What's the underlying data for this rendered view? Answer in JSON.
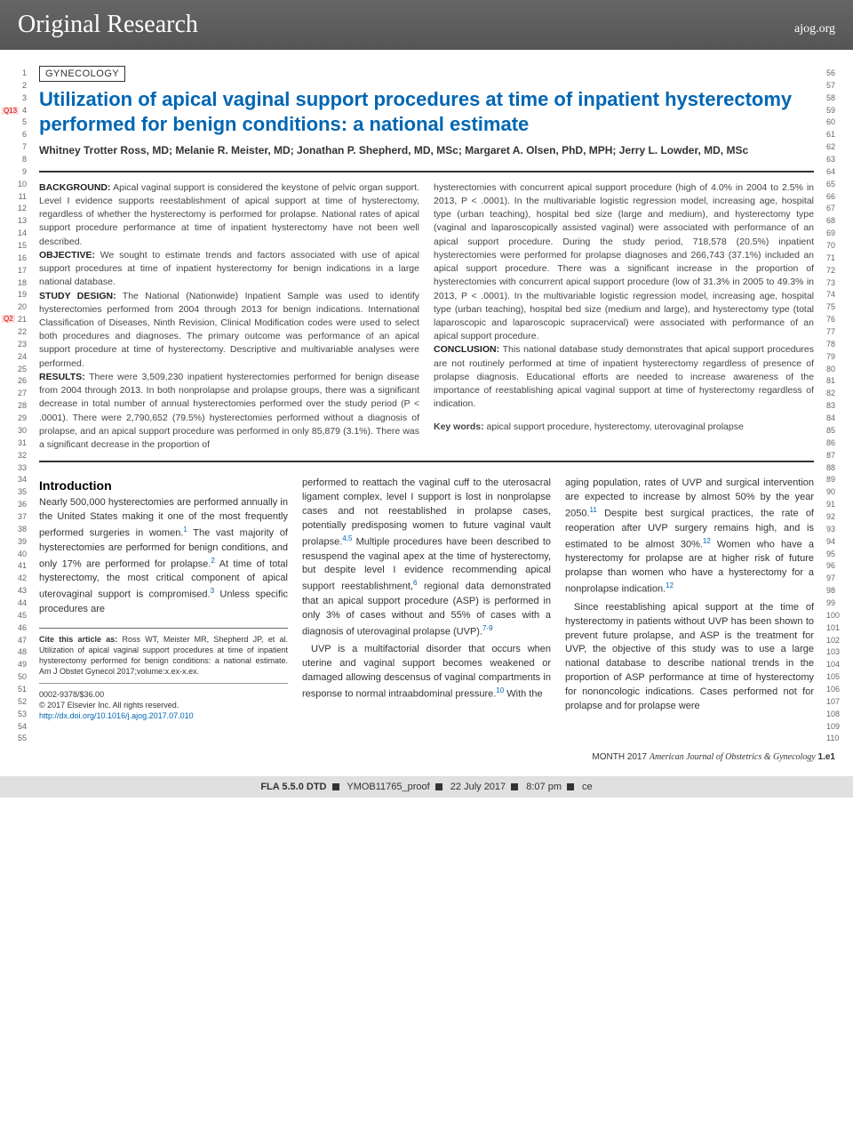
{
  "header": {
    "title": "Original Research",
    "url": "ajog.org"
  },
  "section_label": "GYNECOLOGY",
  "title": "Utilization of apical vaginal support procedures at time of inpatient hysterectomy performed for benign conditions: a national estimate",
  "authors": "Whitney Trotter Ross, MD; Melanie R. Meister, MD; Jonathan P. Shepherd, MD, MSc; Margaret A. Olsen, PhD, MPH; Jerry L. Lowder, MD, MSc",
  "q_markers": {
    "q13": "Q13",
    "q2": "Q2"
  },
  "abstract": {
    "left": {
      "background_label": "BACKGROUND:",
      "background": " Apical vaginal support is considered the keystone of pelvic organ support. Level I evidence supports reestablishment of apical support at time of hysterectomy, regardless of whether the hysterectomy is performed for prolapse. National rates of apical support procedure performance at time of inpatient hysterectomy have not been well described.",
      "objective_label": "OBJECTIVE:",
      "objective": " We sought to estimate trends and factors associated with use of apical support procedures at time of inpatient hysterectomy for benign indications in a large national database.",
      "study_label": "STUDY DESIGN:",
      "study": " The National (Nationwide) Inpatient Sample was used to identify hysterectomies performed from 2004 through 2013 for benign indications. International Classification of Diseases, Ninth Revision, Clinical Modification codes were used to select both procedures and diagnoses. The primary outcome was performance of an apical support procedure at time of hysterectomy. Descriptive and multivariable analyses were performed.",
      "results_label": "RESULTS:",
      "results": " There were 3,509,230 inpatient hysterectomies performed for benign disease from 2004 through 2013. In both nonprolapse and prolapse groups, there was a significant decrease in total number of annual hysterectomies performed over the study period (P < .0001). There were 2,790,652 (79.5%) hysterectomies performed without a diagnosis of prolapse, and an apical support procedure was performed in only 85,879 (3.1%). There was a significant decrease in the proportion of"
    },
    "right": {
      "cont1": "hysterectomies with concurrent apical support procedure (high of 4.0% in 2004 to 2.5% in 2013, P < .0001). In the multivariable logistic regression model, increasing age, hospital type (urban teaching), hospital bed size (large and medium), and hysterectomy type (vaginal and laparoscopically assisted vaginal) were associated with performance of an apical support procedure. During the study period, 718,578 (20.5%) inpatient hysterectomies were performed for prolapse diagnoses and 266,743 (37.1%) included an apical support procedure. There was a significant increase in the proportion of hysterectomies with concurrent apical support procedure (low of 31.3% in 2005 to 49.3% in 2013, P < .0001). In the multivariable logistic regression model, increasing age, hospital type (urban teaching), hospital bed size (medium and large), and hysterectomy type (total laparoscopic and laparoscopic supracervical) were associated with performance of an apical support procedure.",
      "conclusion_label": "CONCLUSION:",
      "conclusion": " This national database study demonstrates that apical support procedures are not routinely performed at time of inpatient hysterectomy regardless of presence of prolapse diagnosis. Educational efforts are needed to increase awareness of the importance of reestablishing apical vaginal support at time of hysterectomy regardless of indication.",
      "keywords_label": "Key words:",
      "keywords": " apical support procedure, hysterectomy, uterovaginal prolapse"
    }
  },
  "body": {
    "intro_heading": "Introduction",
    "col1_p1": "Nearly 500,000 hysterectomies are performed annually in the United States making it one of the most frequently performed surgeries in women.",
    "col1_p1_sup": "1",
    "col1_p1b": " The vast majority of hysterectomies are performed for benign conditions, and only 17% are performed for prolapse.",
    "col1_p1b_sup": "2",
    "col1_p1c": " At time of total hysterectomy, the most critical component of apical uterovaginal support is compromised.",
    "col1_p1c_sup": "3",
    "col1_p1d": " Unless specific procedures are",
    "col2_p1": "performed to reattach the vaginal cuff to the uterosacral ligament complex, level I support is lost in nonprolapse cases and not reestablished in prolapse cases, potentially predisposing women to future vaginal vault prolapse.",
    "col2_p1_sup": "4,5",
    "col2_p1b": " Multiple procedures have been described to resuspend the vaginal apex at the time of hysterectomy, but despite level I evidence recommending apical support reestablishment,",
    "col2_p1b_sup": "6",
    "col2_p1c": " regional data demonstrated that an apical support procedure (ASP) is performed in only 3% of cases without and 55% of cases with a diagnosis of uterovaginal prolapse (UVP).",
    "col2_p1c_sup": "7-9",
    "col2_p2": "UVP is a multifactorial disorder that occurs when uterine and vaginal support becomes weakened or damaged allowing descensus of vaginal compartments in response to normal intraabdominal pressure.",
    "col2_p2_sup": "10",
    "col2_p2b": " With the",
    "col3_p1": "aging population, rates of UVP and surgical intervention are expected to increase by almost 50% by the year 2050.",
    "col3_p1_sup": "11",
    "col3_p1b": " Despite best surgical practices, the rate of reoperation after UVP surgery remains high, and is estimated to be almost 30%.",
    "col3_p1b_sup": "12",
    "col3_p1c": " Women who have a hysterectomy for prolapse are at higher risk of future prolapse than women who have a hysterectomy for a nonprolapse indication.",
    "col3_p1c_sup": "12",
    "col3_p2": "Since reestablishing apical support at the time of hysterectomy in patients without UVP has been shown to prevent future prolapse, and ASP is the treatment for UVP, the objective of this study was to use a large national database to describe national trends in the proportion of ASP performance at time of hysterectomy for nononcologic indications. Cases performed not for prolapse and for prolapse were"
  },
  "cite": {
    "label": "Cite this article as:",
    "text": " Ross WT, Meister MR, Shepherd JP, et al. Utilization of apical vaginal support procedures at time of inpatient hysterectomy performed for benign conditions: a national estimate. Am J Obstet Gynecol 2017;volume:x.ex-x.ex.",
    "issn": "0002-9378/$36.00",
    "copyright": "© 2017 Elsevier Inc. All rights reserved.",
    "doi": "http://dx.doi.org/10.1016/j.ajog.2017.07.010"
  },
  "footer": {
    "month": "MONTH 2017",
    "journal": "American Journal of Obstetrics & Gynecology",
    "page": "1.e1"
  },
  "proof": {
    "fla": "FLA 5.5.0 DTD",
    "id": "YMOB11765_proof",
    "date": "22 July 2017",
    "time": "8:07 pm",
    "ce": "ce"
  },
  "line_numbers": {
    "left_start": 1,
    "left_end": 55,
    "right_start": 56,
    "right_end": 110
  }
}
